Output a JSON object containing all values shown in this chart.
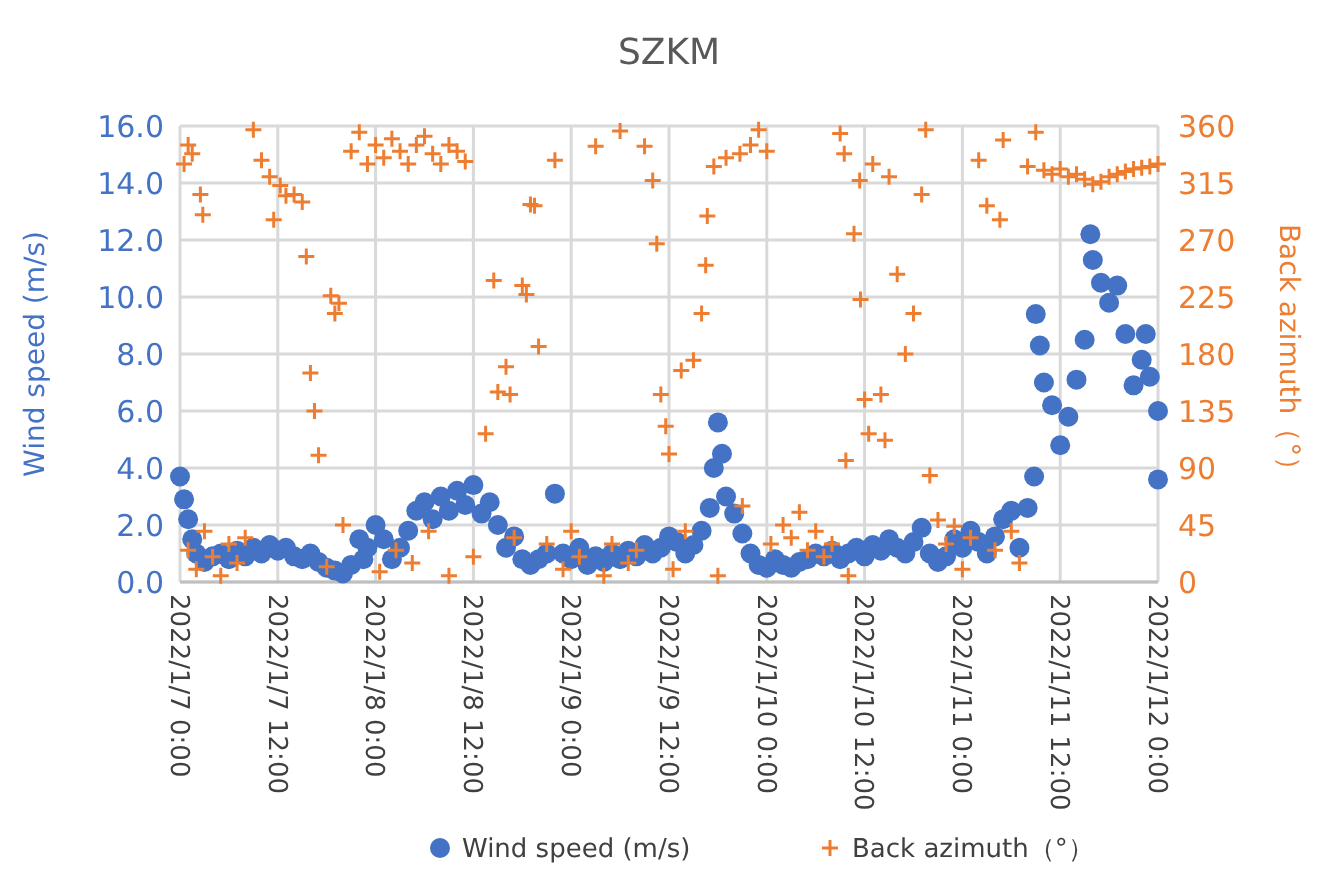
{
  "chart_data": {
    "type": "scatter",
    "title": "SZKM",
    "ylabel": "Wind speed (m/s)",
    "y2label": "Back azimuth（°）",
    "xlim": [
      "2022-01-07T00:00",
      "2022-01-12T00:00"
    ],
    "xticks": [
      {
        "value": "2022-01-07T00:00",
        "label": "2022/1/7 0:00"
      },
      {
        "value": "2022-01-07T12:00",
        "label": "2022/1/7 12:00"
      },
      {
        "value": "2022-01-08T00:00",
        "label": "2022/1/8 0:00"
      },
      {
        "value": "2022-01-08T12:00",
        "label": "2022/1/8 12:00"
      },
      {
        "value": "2022-01-09T00:00",
        "label": "2022/1/9 0:00"
      },
      {
        "value": "2022-01-09T12:00",
        "label": "2022/1/9 12:00"
      },
      {
        "value": "2022-01-10T00:00",
        "label": "2022/1/10 0:00"
      },
      {
        "value": "2022-01-10T12:00",
        "label": "2022/1/10 12:00"
      },
      {
        "value": "2022-01-11T00:00",
        "label": "2022/1/11 0:00"
      },
      {
        "value": "2022-01-11T12:00",
        "label": "2022/1/11 12:00"
      },
      {
        "value": "2022-01-12T00:00",
        "label": "2022/1/12 0:00"
      }
    ],
    "ylim": [
      0,
      16
    ],
    "yticks": [
      {
        "value": 0,
        "label": "0.0"
      },
      {
        "value": 2,
        "label": "2.0"
      },
      {
        "value": 4,
        "label": "4.0"
      },
      {
        "value": 6,
        "label": "6.0"
      },
      {
        "value": 8,
        "label": "8.0"
      },
      {
        "value": 10,
        "label": "10.0"
      },
      {
        "value": 12,
        "label": "12.0"
      },
      {
        "value": 14,
        "label": "14.0"
      },
      {
        "value": 16,
        "label": "16.0"
      }
    ],
    "y2lim": [
      0,
      360
    ],
    "y2ticks": [
      0,
      45,
      90,
      135,
      180,
      225,
      270,
      315,
      360
    ],
    "grid": true,
    "legend": "bottom",
    "series": [
      {
        "name": "Wind speed (m/s)",
        "color": "#4472c4",
        "marker": "circle",
        "x": [
          "2022-01-07T00:00",
          "2022-01-07T00:30",
          "2022-01-07T01:00",
          "2022-01-07T01:30",
          "2022-01-07T02:00",
          "2022-01-07T03:00",
          "2022-01-07T04:00",
          "2022-01-07T05:00",
          "2022-01-07T06:00",
          "2022-01-07T07:00",
          "2022-01-07T08:00",
          "2022-01-07T09:00",
          "2022-01-07T10:00",
          "2022-01-07T11:00",
          "2022-01-07T12:00",
          "2022-01-07T13:00",
          "2022-01-07T14:00",
          "2022-01-07T15:00",
          "2022-01-07T16:00",
          "2022-01-07T17:00",
          "2022-01-07T18:00",
          "2022-01-07T19:00",
          "2022-01-07T20:00",
          "2022-01-07T21:00",
          "2022-01-07T22:00",
          "2022-01-07T22:30",
          "2022-01-07T23:00",
          "2022-01-08T00:00",
          "2022-01-08T01:00",
          "2022-01-08T02:00",
          "2022-01-08T03:00",
          "2022-01-08T04:00",
          "2022-01-08T05:00",
          "2022-01-08T06:00",
          "2022-01-08T07:00",
          "2022-01-08T08:00",
          "2022-01-08T09:00",
          "2022-01-08T10:00",
          "2022-01-08T11:00",
          "2022-01-08T12:00",
          "2022-01-08T13:00",
          "2022-01-08T14:00",
          "2022-01-08T15:00",
          "2022-01-08T16:00",
          "2022-01-08T17:00",
          "2022-01-08T18:00",
          "2022-01-08T19:00",
          "2022-01-08T20:00",
          "2022-01-08T21:00",
          "2022-01-08T22:00",
          "2022-01-08T23:00",
          "2022-01-09T00:00",
          "2022-01-09T01:00",
          "2022-01-09T02:00",
          "2022-01-09T03:00",
          "2022-01-09T04:00",
          "2022-01-09T05:00",
          "2022-01-09T06:00",
          "2022-01-09T07:00",
          "2022-01-09T08:00",
          "2022-01-09T09:00",
          "2022-01-09T10:00",
          "2022-01-09T11:00",
          "2022-01-09T12:00",
          "2022-01-09T13:00",
          "2022-01-09T14:00",
          "2022-01-09T15:00",
          "2022-01-09T16:00",
          "2022-01-09T17:00",
          "2022-01-09T17:30",
          "2022-01-09T18:00",
          "2022-01-09T18:30",
          "2022-01-09T19:00",
          "2022-01-09T20:00",
          "2022-01-09T21:00",
          "2022-01-09T22:00",
          "2022-01-09T23:00",
          "2022-01-10T00:00",
          "2022-01-10T01:00",
          "2022-01-10T02:00",
          "2022-01-10T03:00",
          "2022-01-10T04:00",
          "2022-01-10T05:00",
          "2022-01-10T06:00",
          "2022-01-10T07:00",
          "2022-01-10T08:00",
          "2022-01-10T09:00",
          "2022-01-10T10:00",
          "2022-01-10T11:00",
          "2022-01-10T12:00",
          "2022-01-10T13:00",
          "2022-01-10T14:00",
          "2022-01-10T15:00",
          "2022-01-10T16:00",
          "2022-01-10T17:00",
          "2022-01-10T18:00",
          "2022-01-10T19:00",
          "2022-01-10T20:00",
          "2022-01-10T21:00",
          "2022-01-10T22:00",
          "2022-01-10T23:00",
          "2022-01-11T00:00",
          "2022-01-11T01:00",
          "2022-01-11T02:00",
          "2022-01-11T03:00",
          "2022-01-11T04:00",
          "2022-01-11T05:00",
          "2022-01-11T06:00",
          "2022-01-11T07:00",
          "2022-01-11T08:00",
          "2022-01-11T08:48",
          "2022-01-11T09:00",
          "2022-01-11T09:30",
          "2022-01-11T10:00",
          "2022-01-11T11:00",
          "2022-01-11T12:00",
          "2022-01-11T13:00",
          "2022-01-11T14:00",
          "2022-01-11T15:00",
          "2022-01-11T15:42",
          "2022-01-11T16:00",
          "2022-01-11T17:00",
          "2022-01-11T18:00",
          "2022-01-11T19:00",
          "2022-01-11T20:00",
          "2022-01-11T21:00",
          "2022-01-11T22:00",
          "2022-01-11T22:30",
          "2022-01-11T23:00",
          "2022-01-12T00:00",
          "2022-01-12T00:00"
        ],
        "values": [
          3.7,
          2.9,
          2.2,
          1.5,
          1.0,
          0.7,
          0.9,
          1.0,
          0.8,
          1.1,
          0.9,
          1.2,
          1.0,
          1.3,
          1.1,
          1.2,
          0.9,
          0.8,
          1.0,
          0.7,
          0.5,
          0.4,
          0.3,
          0.6,
          1.5,
          0.8,
          1.2,
          2.0,
          1.5,
          0.8,
          1.2,
          1.8,
          2.5,
          2.8,
          2.2,
          3.0,
          2.5,
          3.2,
          2.7,
          3.4,
          2.4,
          2.8,
          2.0,
          1.2,
          1.6,
          0.8,
          0.6,
          0.8,
          1.0,
          3.1,
          1.0,
          0.8,
          1.2,
          0.6,
          0.9,
          0.7,
          1.0,
          0.8,
          1.1,
          0.9,
          1.3,
          1.0,
          1.2,
          1.6,
          1.4,
          1.0,
          1.3,
          1.8,
          2.6,
          4.0,
          5.6,
          4.5,
          3.0,
          2.4,
          1.7,
          1.0,
          0.6,
          0.5,
          0.8,
          0.6,
          0.5,
          0.7,
          0.8,
          1.0,
          0.9,
          1.1,
          0.8,
          1.0,
          1.2,
          0.9,
          1.3,
          1.1,
          1.5,
          1.2,
          1.0,
          1.4,
          1.9,
          1.0,
          0.7,
          0.9,
          1.5,
          1.2,
          1.8,
          1.4,
          1.0,
          1.6,
          2.2,
          2.5,
          1.2,
          2.6,
          3.7,
          9.4,
          8.3,
          7.0,
          6.2,
          4.8,
          5.8,
          7.1,
          8.5,
          12.2,
          11.3,
          10.5,
          9.8,
          10.4,
          8.7,
          6.9,
          7.8,
          8.7,
          7.2,
          6.0,
          3.6
        ]
      },
      {
        "name": "Back azimuth（°）",
        "color": "#ed7d31",
        "marker": "cross",
        "axis": "y2",
        "x": [
          "2022-01-07T00:30",
          "2022-01-07T01:00",
          "2022-01-07T01:30",
          "2022-01-07T02:30",
          "2022-01-07T02:48",
          "2022-01-07T01:00",
          "2022-01-07T02:00",
          "2022-01-07T03:00",
          "2022-01-07T04:00",
          "2022-01-07T05:00",
          "2022-01-07T06:00",
          "2022-01-07T07:00",
          "2022-01-07T08:00",
          "2022-01-07T09:00",
          "2022-01-07T10:00",
          "2022-01-07T11:00",
          "2022-01-07T11:30",
          "2022-01-07T12:18",
          "2022-01-07T13:00",
          "2022-01-07T14:00",
          "2022-01-07T15:00",
          "2022-01-07T15:30",
          "2022-01-07T16:00",
          "2022-01-07T16:30",
          "2022-01-07T17:00",
          "2022-01-07T18:00",
          "2022-01-07T18:30",
          "2022-01-07T19:00",
          "2022-01-07T19:30",
          "2022-01-07T20:00",
          "2022-01-07T21:00",
          "2022-01-07T22:00",
          "2022-01-07T23:00",
          "2022-01-08T00:00",
          "2022-01-08T01:00",
          "2022-01-08T02:00",
          "2022-01-08T03:00",
          "2022-01-08T04:00",
          "2022-01-08T05:00",
          "2022-01-08T06:00",
          "2022-01-08T07:00",
          "2022-01-08T08:00",
          "2022-01-08T09:00",
          "2022-01-08T10:00",
          "2022-01-08T11:00",
          "2022-01-08T00:30",
          "2022-01-08T02:30",
          "2022-01-08T04:30",
          "2022-01-08T06:30",
          "2022-01-08T09:00",
          "2022-01-08T12:00",
          "2022-01-08T13:30",
          "2022-01-08T14:30",
          "2022-01-08T15:00",
          "2022-01-08T16:00",
          "2022-01-08T16:30",
          "2022-01-08T17:00",
          "2022-01-08T18:00",
          "2022-01-08T18:30",
          "2022-01-08T19:00",
          "2022-01-08T19:30",
          "2022-01-08T20:00",
          "2022-01-08T21:00",
          "2022-01-08T22:00",
          "2022-01-08T23:00",
          "2022-01-09T00:00",
          "2022-01-09T01:00",
          "2022-01-09T03:00",
          "2022-01-09T04:00",
          "2022-01-09T05:00",
          "2022-01-09T06:00",
          "2022-01-09T07:00",
          "2022-01-09T08:00",
          "2022-01-09T09:00",
          "2022-01-09T10:00",
          "2022-01-09T10:30",
          "2022-01-09T11:00",
          "2022-01-09T11:36",
          "2022-01-09T12:00",
          "2022-01-09T12:30",
          "2022-01-09T13:30",
          "2022-01-09T14:00",
          "2022-01-09T15:00",
          "2022-01-09T16:00",
          "2022-01-09T16:30",
          "2022-01-09T16:42",
          "2022-01-09T17:30",
          "2022-01-09T18:00",
          "2022-01-09T19:00",
          "2022-01-09T20:42",
          "2022-01-09T22:00",
          "2022-01-09T23:00",
          "2022-01-10T00:00",
          "2022-01-09T21:00",
          "2022-01-10T00:30",
          "2022-01-10T02:00",
          "2022-01-10T03:00",
          "2022-01-10T04:00",
          "2022-01-10T05:00",
          "2022-01-10T06:00",
          "2022-01-10T07:00",
          "2022-01-10T08:00",
          "2022-01-10T09:00",
          "2022-01-10T09:30",
          "2022-01-10T09:42",
          "2022-01-10T10:00",
          "2022-01-10T10:42",
          "2022-01-10T11:24",
          "2022-01-10T11:30",
          "2022-01-10T12:00",
          "2022-01-10T12:30",
          "2022-01-10T13:00",
          "2022-01-10T14:00",
          "2022-01-10T14:30",
          "2022-01-10T15:00",
          "2022-01-10T16:00",
          "2022-01-10T17:00",
          "2022-01-10T18:00",
          "2022-01-10T19:00",
          "2022-01-10T19:30",
          "2022-01-10T20:00",
          "2022-01-10T21:00",
          "2022-01-10T22:00",
          "2022-01-10T23:00",
          "2022-01-11T00:00",
          "2022-01-11T01:00",
          "2022-01-11T02:00",
          "2022-01-11T03:00",
          "2022-01-11T04:00",
          "2022-01-11T04:36",
          "2022-01-11T05:00",
          "2022-01-11T06:00",
          "2022-01-11T07:00",
          "2022-01-11T08:00",
          "2022-01-11T09:00",
          "2022-01-11T10:00",
          "2022-01-11T11:00",
          "2022-01-11T12:00",
          "2022-01-11T13:00",
          "2022-01-11T14:00",
          "2022-01-11T15:00",
          "2022-01-11T16:00",
          "2022-01-11T17:00",
          "2022-01-11T18:00",
          "2022-01-11T19:00",
          "2022-01-11T20:00",
          "2022-01-11T21:00",
          "2022-01-11T22:00",
          "2022-01-11T23:00",
          "2022-01-12T00:00"
        ],
        "values": [
          330,
          345,
          338,
          306,
          290,
          25,
          10,
          40,
          20,
          5,
          30,
          15,
          35,
          357,
          333,
          320,
          286,
          313,
          305,
          306,
          300,
          257,
          165,
          135,
          100,
          12,
          226,
          212,
          220,
          45,
          340,
          355,
          330,
          345,
          335,
          350,
          340,
          330,
          345,
          352,
          338,
          330,
          345,
          340,
          332,
          8,
          25,
          15,
          40,
          5,
          20,
          117,
          238,
          150,
          170,
          148,
          35,
          234,
          227,
          298,
          297,
          186,
          30,
          333,
          10,
          40,
          20,
          344,
          5,
          30,
          356,
          15,
          25,
          344,
          317,
          267,
          148,
          123,
          101,
          10,
          167,
          40,
          175,
          212,
          250,
          289,
          328,
          5,
          335,
          338,
          345,
          357,
          340,
          60,
          30,
          45,
          35,
          55,
          25,
          40,
          20,
          30,
          354,
          338,
          96,
          5,
          275,
          317,
          223,
          144,
          117,
          330,
          148,
          112,
          320,
          243,
          180,
          212,
          306,
          357,
          84,
          49,
          30,
          44,
          10,
          35,
          333,
          297,
          25,
          286,
          349,
          40,
          15,
          328,
          355,
          325,
          322,
          326,
          320,
          322,
          318,
          314,
          316,
          320,
          322,
          324,
          326,
          327,
          328,
          330
        ]
      }
    ]
  }
}
